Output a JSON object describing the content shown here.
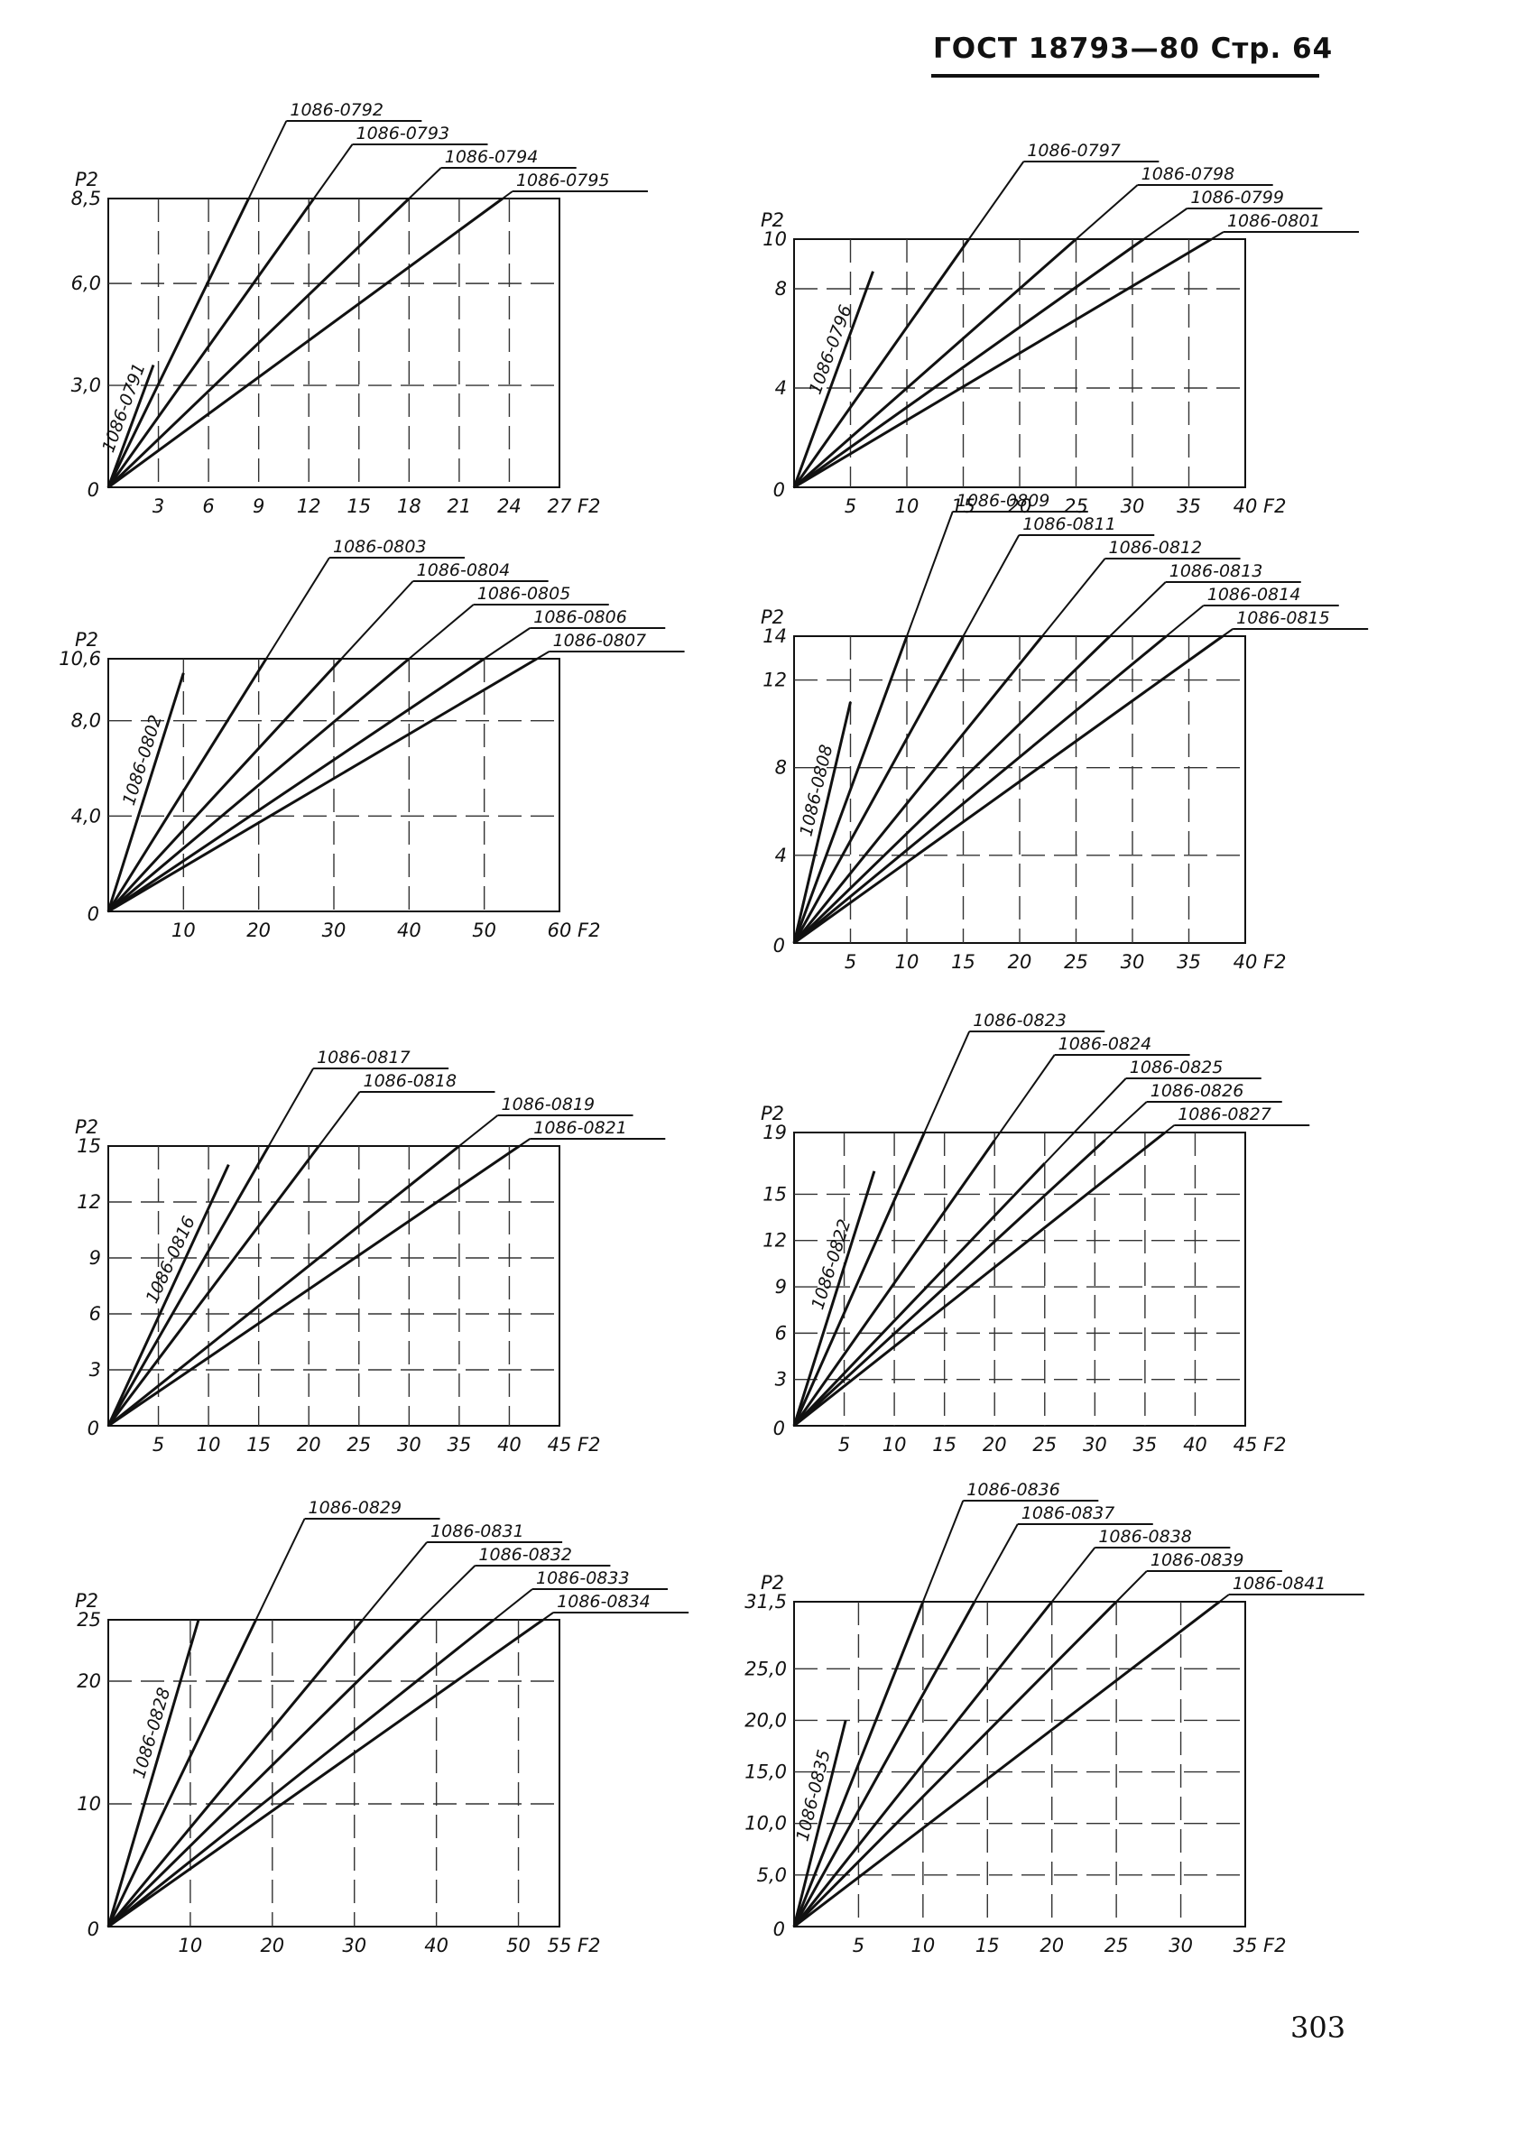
{
  "header": {
    "text": "ГОСТ  18793—80  Стр.  64"
  },
  "page_number": "303",
  "colors": {
    "ink": "#111111",
    "grid": "#333333",
    "paper": "#ffffff"
  },
  "chart_data": [
    {
      "type": "line",
      "ylabel": "P2",
      "xlabel": "F2",
      "xlim": [
        0,
        27
      ],
      "ylim": [
        0,
        8.5
      ],
      "xticks": [
        3,
        6,
        9,
        12,
        15,
        18,
        21,
        24,
        27
      ],
      "xtick_labels": [
        "3",
        "6",
        "9",
        "12",
        "15",
        "18",
        "21",
        "24",
        "27"
      ],
      "yticks": [
        3.0,
        6.0,
        8.5
      ],
      "ytick_labels": [
        "3,0",
        "6,0",
        "8,5"
      ],
      "series": [
        {
          "name": "1086-0791",
          "x": [
            0,
            2.7
          ],
          "y": [
            0,
            3.6
          ],
          "rotated_label": true
        },
        {
          "name": "1086-0792",
          "x": [
            0,
            8.4
          ],
          "y": [
            0,
            8.5
          ]
        },
        {
          "name": "1086-0793",
          "x": [
            0,
            12.3
          ],
          "y": [
            0,
            8.5
          ]
        },
        {
          "name": "1086-0794",
          "x": [
            0,
            18.0
          ],
          "y": [
            0,
            8.5
          ]
        },
        {
          "name": "1086-0795",
          "x": [
            0,
            23.6
          ],
          "y": [
            0,
            8.5
          ]
        }
      ]
    },
    {
      "type": "line",
      "ylabel": "P2",
      "xlabel": "F2",
      "xlim": [
        0,
        40
      ],
      "ylim": [
        0,
        10
      ],
      "xticks": [
        5,
        10,
        15,
        20,
        25,
        30,
        35,
        40
      ],
      "xtick_labels": [
        "5",
        "10",
        "15",
        "20",
        "25",
        "30",
        "35",
        "40"
      ],
      "yticks": [
        4,
        8,
        10
      ],
      "ytick_labels": [
        "4",
        "8",
        "10"
      ],
      "series": [
        {
          "name": "1086-0796",
          "x": [
            0,
            7.0
          ],
          "y": [
            0,
            8.7
          ],
          "rotated_label": true
        },
        {
          "name": "1086-0797",
          "x": [
            0,
            15.5
          ],
          "y": [
            0,
            10
          ]
        },
        {
          "name": "1086-0798",
          "x": [
            0,
            25.0
          ],
          "y": [
            0,
            10
          ]
        },
        {
          "name": "1086-0799",
          "x": [
            0,
            31.0
          ],
          "y": [
            0,
            10
          ]
        },
        {
          "name": "1086-0801",
          "x": [
            0,
            37.0
          ],
          "y": [
            0,
            10
          ]
        }
      ]
    },
    {
      "type": "line",
      "ylabel": "P2",
      "xlabel": "F2",
      "xlim": [
        0,
        60
      ],
      "ylim": [
        0,
        10.6
      ],
      "xticks": [
        10,
        20,
        30,
        40,
        50,
        60
      ],
      "xtick_labels": [
        "10",
        "20",
        "30",
        "40",
        "50",
        "60"
      ],
      "yticks": [
        4.0,
        8.0,
        10.6
      ],
      "ytick_labels": [
        "4,0",
        "8,0",
        "10,6"
      ],
      "series": [
        {
          "name": "1086-0802",
          "x": [
            0,
            10.0
          ],
          "y": [
            0,
            10.0
          ],
          "rotated_label": true
        },
        {
          "name": "1086-0803",
          "x": [
            0,
            21.0
          ],
          "y": [
            0,
            10.6
          ]
        },
        {
          "name": "1086-0804",
          "x": [
            0,
            31.0
          ],
          "y": [
            0,
            10.6
          ]
        },
        {
          "name": "1086-0805",
          "x": [
            0,
            40.0
          ],
          "y": [
            0,
            10.6
          ]
        },
        {
          "name": "1086-0806",
          "x": [
            0,
            50.0
          ],
          "y": [
            0,
            10.6
          ]
        },
        {
          "name": "1086-0807",
          "x": [
            0,
            57.0
          ],
          "y": [
            0,
            10.6
          ]
        }
      ]
    },
    {
      "type": "line",
      "ylabel": "P2",
      "xlabel": "F2",
      "xlim": [
        0,
        40
      ],
      "ylim": [
        0,
        14
      ],
      "xticks": [
        5,
        10,
        15,
        20,
        25,
        30,
        35,
        40
      ],
      "xtick_labels": [
        "5",
        "10",
        "15",
        "20",
        "25",
        "30",
        "35",
        "40"
      ],
      "yticks": [
        4,
        8,
        12,
        14
      ],
      "ytick_labels": [
        "4",
        "8",
        "12",
        "14"
      ],
      "series": [
        {
          "name": "1086-0808",
          "x": [
            0,
            5.0
          ],
          "y": [
            0,
            11.0
          ],
          "rotated_label": true
        },
        {
          "name": "1086-0809",
          "x": [
            0,
            10.0
          ],
          "y": [
            0,
            14
          ]
        },
        {
          "name": "1086-0811",
          "x": [
            0,
            15.0
          ],
          "y": [
            0,
            14
          ]
        },
        {
          "name": "1086-0812",
          "x": [
            0,
            22.0
          ],
          "y": [
            0,
            14
          ]
        },
        {
          "name": "1086-0813",
          "x": [
            0,
            28.0
          ],
          "y": [
            0,
            14
          ]
        },
        {
          "name": "1086-0814",
          "x": [
            0,
            33.0
          ],
          "y": [
            0,
            14
          ]
        },
        {
          "name": "1086-0815",
          "x": [
            0,
            38.0
          ],
          "y": [
            0,
            14
          ]
        }
      ]
    },
    {
      "type": "line",
      "ylabel": "P2",
      "xlabel": "F2",
      "xlim": [
        0,
        45
      ],
      "ylim": [
        0,
        15
      ],
      "xticks": [
        5,
        10,
        15,
        20,
        25,
        30,
        35,
        40,
        45
      ],
      "xtick_labels": [
        "5",
        "10",
        "15",
        "20",
        "25",
        "30",
        "35",
        "40",
        "45"
      ],
      "yticks": [
        3,
        6,
        9,
        12,
        15
      ],
      "ytick_labels": [
        "3",
        "6",
        "9",
        "12",
        "15"
      ],
      "series": [
        {
          "name": "1086-0816",
          "x": [
            0,
            12.0
          ],
          "y": [
            0,
            14.0
          ],
          "rotated_label": true
        },
        {
          "name": "1086-0817",
          "x": [
            0,
            16.0
          ],
          "y": [
            0,
            15
          ]
        },
        {
          "name": "1086-0818",
          "x": [
            0,
            21.0
          ],
          "y": [
            0,
            15
          ]
        },
        {
          "name": "1086-0819",
          "x": [
            0,
            35.0
          ],
          "y": [
            0,
            15
          ]
        },
        {
          "name": "1086-0821",
          "x": [
            0,
            41.0
          ],
          "y": [
            0,
            15
          ]
        }
      ]
    },
    {
      "type": "line",
      "ylabel": "P2",
      "xlabel": "F2",
      "xlim": [
        0,
        45
      ],
      "ylim": [
        0,
        19
      ],
      "xticks": [
        5,
        10,
        15,
        20,
        25,
        30,
        35,
        40,
        45
      ],
      "xtick_labels": [
        "5",
        "10",
        "15",
        "20",
        "25",
        "30",
        "35",
        "40",
        "45"
      ],
      "yticks": [
        3,
        6,
        9,
        12,
        15,
        19
      ],
      "ytick_labels": [
        "3",
        "6",
        "9",
        "12",
        "15",
        "19"
      ],
      "series": [
        {
          "name": "1086-0822",
          "x": [
            0,
            8.0
          ],
          "y": [
            0,
            16.5
          ],
          "rotated_label": true
        },
        {
          "name": "1086-0823",
          "x": [
            0,
            13.0
          ],
          "y": [
            0,
            19
          ]
        },
        {
          "name": "1086-0824",
          "x": [
            0,
            20.0
          ],
          "y": [
            0,
            18.5
          ]
        },
        {
          "name": "1086-0825",
          "x": [
            0,
            25.0
          ],
          "y": [
            0,
            17.0
          ]
        },
        {
          "name": "1086-0826",
          "x": [
            0,
            31.0
          ],
          "y": [
            0,
            18.5
          ]
        },
        {
          "name": "1086-0827",
          "x": [
            0,
            37.0
          ],
          "y": [
            0,
            19
          ]
        }
      ]
    },
    {
      "type": "line",
      "ylabel": "P2",
      "xlabel": "F2",
      "xlim": [
        0,
        55
      ],
      "ylim": [
        0,
        25
      ],
      "xticks": [
        10,
        20,
        30,
        40,
        50,
        55
      ],
      "xtick_labels": [
        "10",
        "20",
        "30",
        "40",
        "50",
        "55"
      ],
      "yticks": [
        10,
        20,
        25
      ],
      "ytick_labels": [
        "10",
        "20",
        "25"
      ],
      "series": [
        {
          "name": "1086-0828",
          "x": [
            0,
            11.0
          ],
          "y": [
            0,
            25
          ],
          "rotated_label": true
        },
        {
          "name": "1086-0829",
          "x": [
            0,
            18.0
          ],
          "y": [
            0,
            25
          ]
        },
        {
          "name": "1086-0831",
          "x": [
            0,
            31.0
          ],
          "y": [
            0,
            25
          ]
        },
        {
          "name": "1086-0832",
          "x": [
            0,
            38.0
          ],
          "y": [
            0,
            25
          ]
        },
        {
          "name": "1086-0833",
          "x": [
            0,
            47.0
          ],
          "y": [
            0,
            25
          ]
        },
        {
          "name": "1086-0834",
          "x": [
            0,
            53.0
          ],
          "y": [
            0,
            25
          ]
        }
      ]
    },
    {
      "type": "line",
      "ylabel": "P2",
      "xlabel": "F2",
      "xlim": [
        0,
        35
      ],
      "ylim": [
        0,
        31.5
      ],
      "xticks": [
        5,
        10,
        15,
        20,
        25,
        30,
        35
      ],
      "xtick_labels": [
        "5",
        "10",
        "15",
        "20",
        "25",
        "30",
        "35"
      ],
      "yticks": [
        5.0,
        10.0,
        15.0,
        20.0,
        25.0,
        31.5
      ],
      "ytick_labels": [
        "5,0",
        "10,0",
        "15,0",
        "20,0",
        "25,0",
        "31,5"
      ],
      "series": [
        {
          "name": "1086-0835",
          "x": [
            0,
            4.0
          ],
          "y": [
            0,
            20.0
          ],
          "rotated_label": true
        },
        {
          "name": "1086-0836",
          "x": [
            0,
            10.0
          ],
          "y": [
            0,
            31.5
          ]
        },
        {
          "name": "1086-0837",
          "x": [
            0,
            14.0
          ],
          "y": [
            0,
            31.5
          ]
        },
        {
          "name": "1086-0838",
          "x": [
            0,
            20.0
          ],
          "y": [
            0,
            31.5
          ]
        },
        {
          "name": "1086-0839",
          "x": [
            0,
            25.0
          ],
          "y": [
            0,
            31.5
          ]
        },
        {
          "name": "1086-0841",
          "x": [
            0,
            33.0
          ],
          "y": [
            0,
            31.5
          ]
        }
      ]
    }
  ]
}
